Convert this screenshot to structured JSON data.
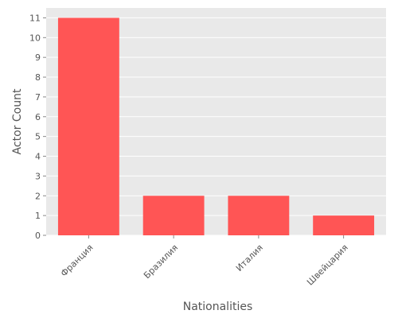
{
  "chart_data": {
    "type": "bar",
    "title": "",
    "xlabel": "Nationalities",
    "ylabel": "Actor Count",
    "categories": [
      "Франция",
      "Бразилия",
      "Италия",
      "Швейцария"
    ],
    "values": [
      11,
      2,
      2,
      1
    ],
    "ylim": [
      0,
      11.5
    ],
    "yticks": [
      "0",
      "1",
      "2",
      "3",
      "4",
      "5",
      "6",
      "7",
      "8",
      "9",
      "10",
      "11"
    ],
    "grid": true,
    "legend": "none",
    "colors": {
      "bar": "#ff5555",
      "panel_background": "#e9e9e9",
      "grid": "#ffffff",
      "text": "#555555"
    }
  }
}
